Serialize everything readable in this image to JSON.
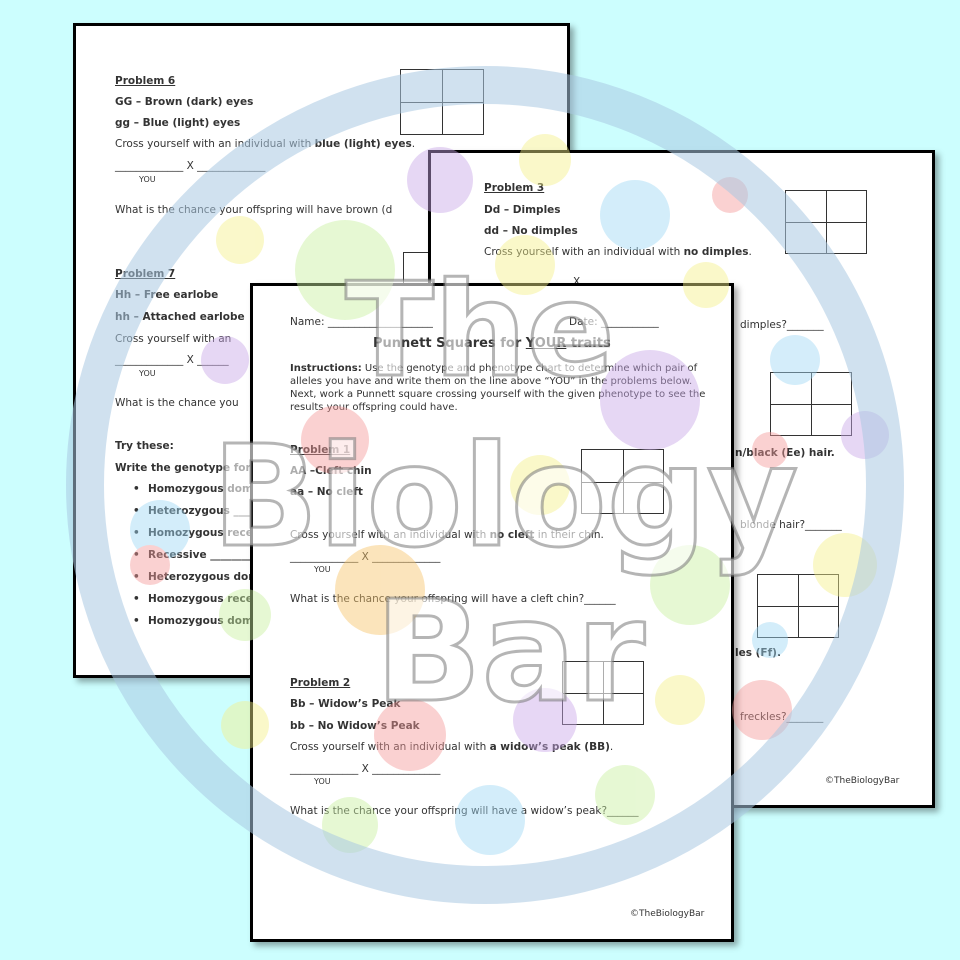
{
  "back_left": {
    "problem6": {
      "title": "Problem 6",
      "line1": "GG – Brown (dark) eyes",
      "line2": "gg – Blue (light) eyes",
      "cross": "Cross yourself with an individual with ",
      "cross_bold": "blue (light) eyes",
      "cross_end": ".",
      "blank": "_____________ X _____________",
      "you": "YOU",
      "question": "What is the chance your offspring will have brown (d"
    },
    "problem7": {
      "title": "Problem 7",
      "line1": "Hh – Free earlobe",
      "line2": "hh – Attached earlobe",
      "cross": "Cross yourself with an",
      "blank": "_____________ X ______",
      "you": "YOU",
      "question": "What is the chance you"
    },
    "try": {
      "title": "Try these:",
      "intro": "Write the genotype for t",
      "items": [
        "Homozygous domi",
        "Heterozygous ____",
        "Homozygous reces",
        "Recessive ________",
        "Heterozygous dom",
        "Homozygous reces",
        "Homozygous domi"
      ]
    }
  },
  "back_right": {
    "problem3": {
      "title": "Problem 3",
      "line1": "Dd – Dimples",
      "line2": "dd – No dimples",
      "cross": "Cross yourself with an individual with ",
      "cross_bold": "no dimples",
      "cross_end": ".",
      "x": "X"
    },
    "fragments": {
      "dimples": "dimples?_______",
      "hair": "n/black (Ee) hair.",
      "blonde": "blonde hair?_______",
      "freckles_trait": "les (Ff).",
      "freckles": "freckles?_______"
    },
    "footer": "©TheBiologyBar"
  },
  "front": {
    "name": "Name: ____________________",
    "date": "Date: ___________",
    "title": {
      "before": "Punnett Squares for ",
      "emphasis": "YOUR",
      "after": " traits"
    },
    "instructions": {
      "label": "Instructions:",
      "text": " Use the genotype and phenotype chart to determine which pair of alleles you have and write them on the line above “YOU” in the problems below. Next, work a Punnett square crossing yourself with the given phenotype to see the results your offspring could have."
    },
    "problem1": {
      "title": "Problem 1",
      "line1": "AA –Cleft chin",
      "line2": "aa – No cleft",
      "cross": "Cross yourself with an individual with ",
      "cross_bold": "no cleft",
      "cross_end": " in their chin.",
      "blank": "_____________ X _____________",
      "you": "YOU",
      "question": "What is the chance your offspring will have a cleft chin?______"
    },
    "problem2": {
      "title": "Problem 2",
      "line1": "Bb – Widow’s Peak",
      "line2": "bb – No Widow’s Peak",
      "cross": "Cross yourself with an individual with ",
      "cross_bold": "a widow’s peak (BB)",
      "cross_end": ".",
      "blank": "_____________ X _____________",
      "you": "YOU",
      "question": "What is the chance your offspring will have a widow’s peak?______"
    },
    "footer": "©TheBiologyBar"
  },
  "watermark": {
    "line1": "The",
    "line2": "Biology",
    "line3": "Bar"
  }
}
